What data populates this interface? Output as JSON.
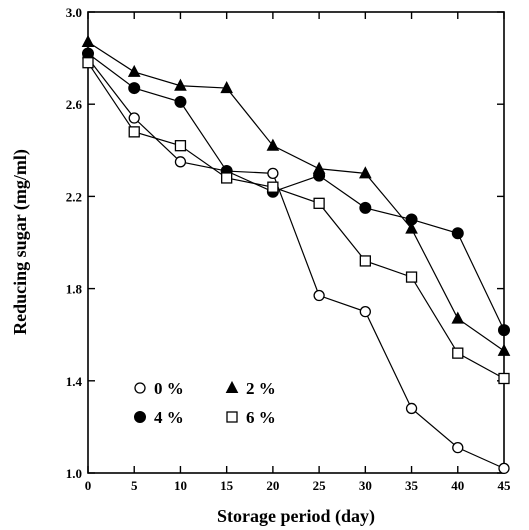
{
  "chart_data": {
    "type": "line",
    "title": "",
    "xlabel": "Storage period (day)",
    "ylabel": "Reducing sugar (mg/ml)",
    "xlim": [
      0,
      45
    ],
    "ylim": [
      1.0,
      3.0
    ],
    "x_ticks": [
      0,
      5,
      10,
      15,
      20,
      25,
      30,
      35,
      40,
      45
    ],
    "x_tick_labels": [
      "0",
      "5",
      "10",
      "15",
      "20",
      "25",
      "30",
      "35",
      "40",
      "45"
    ],
    "y_ticks": [
      1.0,
      1.4,
      1.8,
      2.2,
      2.6,
      3.0
    ],
    "y_tick_labels": [
      "1.0",
      "1.4",
      "1.8",
      "2.2",
      "2.6",
      "3.0"
    ],
    "grid": false,
    "legend_position": "bottom-left",
    "series": [
      {
        "name": "0 %",
        "marker": "open-circle",
        "x": [
          0,
          5,
          10,
          15,
          20,
          25,
          30,
          35,
          40,
          45
        ],
        "y": [
          2.8,
          2.54,
          2.35,
          2.31,
          2.3,
          1.77,
          1.7,
          1.28,
          1.11,
          1.02
        ]
      },
      {
        "name": "2 %",
        "marker": "filled-triangle",
        "x": [
          0,
          5,
          10,
          15,
          20,
          25,
          30,
          35,
          40,
          45
        ],
        "y": [
          2.87,
          2.74,
          2.68,
          2.67,
          2.42,
          2.32,
          2.3,
          2.06,
          1.67,
          1.53
        ]
      },
      {
        "name": "4 %",
        "marker": "filled-circle",
        "x": [
          0,
          5,
          10,
          15,
          20,
          25,
          30,
          35,
          40,
          45
        ],
        "y": [
          2.82,
          2.67,
          2.61,
          2.31,
          2.22,
          2.29,
          2.15,
          2.1,
          2.04,
          1.62
        ]
      },
      {
        "name": "6 %",
        "marker": "open-square",
        "x": [
          0,
          5,
          10,
          15,
          20,
          25,
          30,
          35,
          40,
          45
        ],
        "y": [
          2.78,
          2.48,
          2.42,
          2.28,
          2.24,
          2.17,
          1.92,
          1.85,
          1.52,
          1.41
        ]
      }
    ]
  }
}
